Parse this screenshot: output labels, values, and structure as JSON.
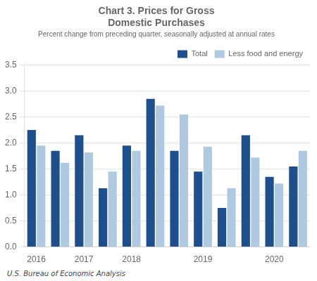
{
  "chart_data": {
    "type": "bar",
    "title": [
      "Chart 3. Prices for Gross",
      "Domestic Purchases"
    ],
    "subtitle": "Percent change from preceding quarter, seasonally adjusted at annual rates",
    "annotations": [
      "U.S. Bureau of Economic Analysis"
    ],
    "categories": [
      "2016",
      null,
      "2017",
      null,
      "2018",
      null,
      null,
      "2019",
      null,
      null,
      "2020",
      null
    ],
    "series": [
      {
        "name": "Total",
        "color": "#1F4E8C",
        "values": [
          2.25,
          1.85,
          2.15,
          1.13,
          1.95,
          2.85,
          1.85,
          1.45,
          0.75,
          2.15,
          1.35,
          1.55
        ]
      },
      {
        "name": "Less food and energy",
        "color": "#AFC9E0",
        "values": [
          1.95,
          1.62,
          1.82,
          1.45,
          1.85,
          2.72,
          2.55,
          1.93,
          1.13,
          1.72,
          1.22,
          1.85
        ]
      }
    ],
    "ylim": [
      0.0,
      3.5
    ],
    "yticks": [
      {
        "value": 0,
        "label": "0.0"
      },
      {
        "value": 0.5,
        "label": "0.5"
      },
      {
        "value": 1,
        "label": "1.0"
      },
      {
        "value": 1.5,
        "label": "1.5"
      },
      {
        "value": 2,
        "label": "2.0"
      },
      {
        "value": 2.5,
        "label": "2.5"
      },
      {
        "value": 3,
        "label": "3.0"
      },
      {
        "value": 3.5,
        "label": "3.5"
      }
    ],
    "grid": true,
    "legend": "upper right"
  }
}
